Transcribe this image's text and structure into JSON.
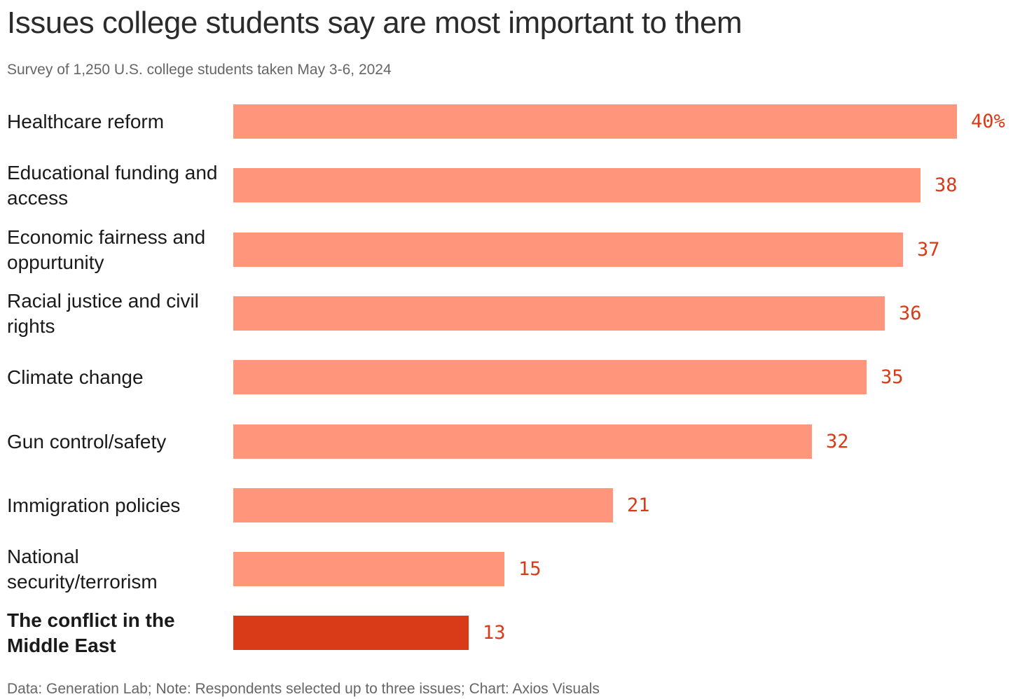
{
  "chart_data": {
    "type": "bar",
    "orientation": "horizontal",
    "title": "Issues college students say are most important to them",
    "subtitle": "Survey of 1,250 U.S. college students taken May 3-6, 2024",
    "categories": [
      "Healthcare reform",
      "Educational funding and access",
      "Economic fairness and oppurtunity",
      "Racial justice and civil rights",
      "Climate change",
      "Gun control/safety",
      "Immigration policies",
      "National security/terrorism",
      "The conflict in the Middle East"
    ],
    "values": [
      40,
      38,
      37,
      36,
      35,
      32,
      21,
      15,
      13
    ],
    "value_labels": [
      "40%",
      "38",
      "37",
      "36",
      "35",
      "32",
      "21",
      "15",
      "13"
    ],
    "highlight_index": 8,
    "unit": "%",
    "xlim": [
      0,
      40
    ],
    "grid": false,
    "legend": "none",
    "colors": {
      "bar": "#ff957b",
      "highlight_bar": "#d93a17",
      "value_text": "#d93a17"
    },
    "footer": "Data: Generation Lab; Note: Respondents selected up to three issues; Chart: Axios Visuals"
  }
}
